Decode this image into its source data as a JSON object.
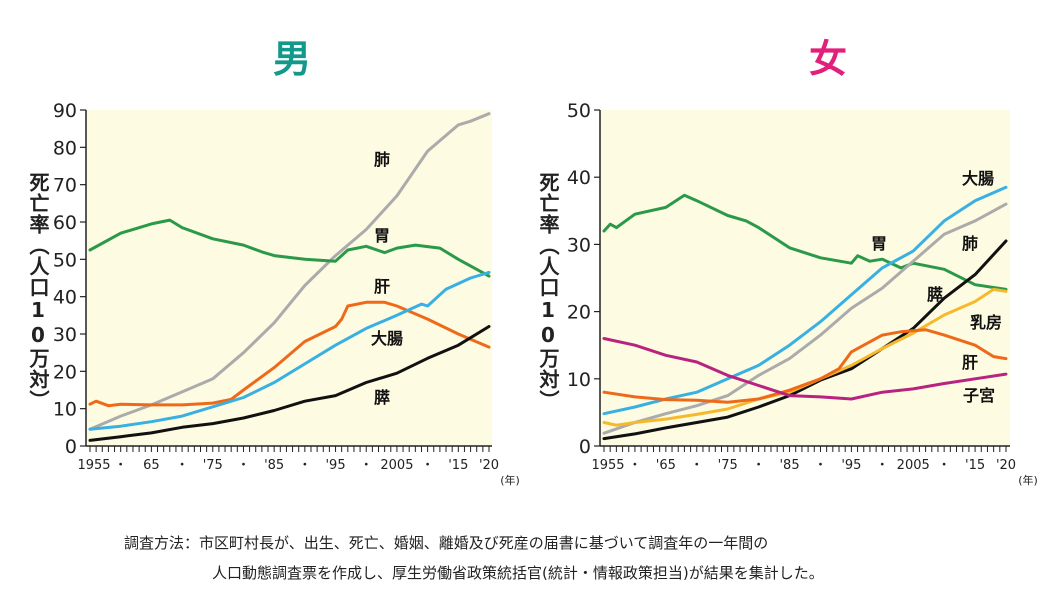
{
  "footnote": {
    "line1": "調査方法：市区町村長が、出生、死亡、婚姻、離婚及び死産の届書に基づいて調査年の一年間の",
    "line2": "人口動態調査票を作成し、厚生労働省政策統括官(統計・情報政策担当)が結果を集計した。"
  },
  "chart_data": [
    {
      "type": "line",
      "title": "男",
      "title_color": "#13998b",
      "ylabel": "死亡率（人口10万対）",
      "xunit": "(年)",
      "xlim": [
        1955,
        2020
      ],
      "ylim": [
        0,
        90
      ],
      "yticks": [
        0,
        10,
        20,
        30,
        40,
        50,
        60,
        70,
        80,
        90
      ],
      "xtick_labels": [
        "1955",
        "・",
        "65",
        "・",
        "'75",
        "・",
        "'85",
        "・",
        "'95",
        "・",
        "2005",
        "・",
        "'15",
        "'20"
      ],
      "grid": false,
      "series": [
        {
          "name": "肺",
          "color": "#ababab",
          "x": [
            1955,
            1960,
            1965,
            1970,
            1975,
            1980,
            1985,
            1990,
            1995,
            2000,
            2005,
            2010,
            2015,
            2017,
            2020
          ],
          "y": [
            4.5,
            8,
            11,
            14.5,
            18,
            25,
            33,
            43,
            51,
            58,
            67,
            79,
            86,
            87,
            89
          ]
        },
        {
          "name": "胃",
          "color": "#2a9a4a",
          "x": [
            1955,
            1960,
            1965,
            1968,
            1970,
            1975,
            1980,
            1983,
            1985,
            1990,
            1995,
            1997,
            2000,
            2003,
            2005,
            2008,
            2012,
            2015,
            2020
          ],
          "y": [
            52.5,
            57,
            59.5,
            60.5,
            58.5,
            55.5,
            53.8,
            52,
            51,
            50,
            49.5,
            52.5,
            53.5,
            51.8,
            53,
            53.8,
            53,
            50,
            45.5
          ]
        },
        {
          "name": "肝",
          "color": "#ee6a1a",
          "x": [
            1955,
            1956,
            1958,
            1960,
            1965,
            1970,
            1975,
            1978,
            1980,
            1985,
            1990,
            1995,
            1996,
            1997,
            2000,
            2003,
            2005,
            2010,
            2015,
            2020
          ],
          "y": [
            11.2,
            12,
            10.8,
            11.2,
            11,
            11,
            11.5,
            12.5,
            15,
            21,
            28,
            32,
            34,
            37.5,
            38.5,
            38.5,
            37.5,
            34,
            30,
            26.5
          ]
        },
        {
          "name": "大腸",
          "color": "#39b0e3",
          "x": [
            1955,
            1960,
            1965,
            1970,
            1975,
            1980,
            1985,
            1990,
            1995,
            2000,
            2005,
            2009,
            2010,
            2013,
            2017,
            2020
          ],
          "y": [
            4.5,
            5.3,
            6.5,
            8,
            10.5,
            13,
            17,
            22,
            27,
            31.5,
            35,
            38,
            37.5,
            42,
            45,
            46.5
          ]
        },
        {
          "name": "膵",
          "color": "#111111",
          "x": [
            1955,
            1960,
            1965,
            1970,
            1975,
            1980,
            1985,
            1990,
            1995,
            2000,
            2005,
            2010,
            2015,
            2020
          ],
          "y": [
            1.5,
            2.5,
            3.5,
            5,
            6,
            7.5,
            9.5,
            12,
            13.5,
            17,
            19.5,
            23.5,
            27,
            32
          ]
        }
      ]
    },
    {
      "type": "line",
      "title": "女",
      "title_color": "#e2207b",
      "ylabel": "死亡率（人口10万対）",
      "xunit": "(年)",
      "xlim": [
        1955,
        2020
      ],
      "ylim": [
        0,
        50
      ],
      "yticks": [
        0,
        10,
        20,
        30,
        40,
        50
      ],
      "xtick_labels": [
        "1955",
        "・",
        "'65",
        "・",
        "'75",
        "・",
        "'85",
        "・",
        "'95",
        "・",
        "2005",
        "・",
        "'15",
        "'20"
      ],
      "grid": false,
      "series": [
        {
          "name": "胃",
          "color": "#2a9a4a",
          "x": [
            1955,
            1956,
            1957,
            1960,
            1965,
            1968,
            1970,
            1975,
            1978,
            1980,
            1985,
            1990,
            1995,
            1996,
            1998,
            2000,
            2003,
            2005,
            2010,
            2015,
            2020
          ],
          "y": [
            32,
            33,
            32.5,
            34.5,
            35.5,
            37.3,
            36.5,
            34.3,
            33.5,
            32.5,
            29.5,
            28,
            27.2,
            28.3,
            27.5,
            27.8,
            26.5,
            27.2,
            26.3,
            24,
            23.3
          ]
        },
        {
          "name": "大腸",
          "color": "#39b0e3",
          "x": [
            1955,
            1960,
            1965,
            1970,
            1975,
            1980,
            1985,
            1990,
            1995,
            2000,
            2005,
            2010,
            2015,
            2020
          ],
          "y": [
            4.8,
            5.8,
            7,
            8,
            10,
            12,
            15,
            18.5,
            22.5,
            26.5,
            29,
            33.5,
            36.5,
            38.5
          ]
        },
        {
          "name": "肺",
          "color": "#ababab",
          "x": [
            1955,
            1960,
            1965,
            1970,
            1975,
            1980,
            1985,
            1990,
            1995,
            2000,
            2005,
            2010,
            2015,
            2020
          ],
          "y": [
            1.9,
            3.5,
            4.8,
            6,
            7.5,
            10.5,
            13,
            16.5,
            20.5,
            23.5,
            27.5,
            31.5,
            33.5,
            36
          ]
        },
        {
          "name": "膵",
          "color": "#111111",
          "x": [
            1955,
            1960,
            1965,
            1970,
            1975,
            1980,
            1985,
            1990,
            1995,
            2000,
            2005,
            2010,
            2015,
            2020
          ],
          "y": [
            1.1,
            1.8,
            2.7,
            3.5,
            4.3,
            5.8,
            7.5,
            9.8,
            11.5,
            14.5,
            17.5,
            22,
            25.5,
            30.5
          ]
        },
        {
          "name": "乳房",
          "color": "#f6b92b",
          "x": [
            1955,
            1957,
            1960,
            1965,
            1970,
            1975,
            1980,
            1985,
            1990,
            1995,
            2000,
            2005,
            2010,
            2015,
            2018,
            2020
          ],
          "y": [
            3.5,
            3.1,
            3.5,
            4,
            4.7,
            5.5,
            7,
            8,
            10,
            12,
            14.5,
            16.8,
            19.5,
            21.5,
            23.3,
            23
          ]
        },
        {
          "name": "肝",
          "color": "#ee6a1a",
          "x": [
            1955,
            1960,
            1965,
            1970,
            1975,
            1980,
            1985,
            1990,
            1993,
            1995,
            2000,
            2003,
            2007,
            2010,
            2015,
            2018,
            2020
          ],
          "y": [
            8,
            7.3,
            6.9,
            6.8,
            6.5,
            7,
            8.3,
            10,
            11.5,
            14,
            16.5,
            17,
            17.3,
            16.5,
            15,
            13.3,
            13
          ]
        },
        {
          "name": "子宮",
          "color": "#b8237f",
          "x": [
            1955,
            1960,
            1965,
            1970,
            1975,
            1980,
            1985,
            1990,
            1995,
            2000,
            2005,
            2010,
            2015,
            2020
          ],
          "y": [
            16,
            15,
            13.5,
            12.5,
            10.5,
            9,
            7.5,
            7.3,
            7,
            8,
            8.5,
            9.3,
            10,
            10.7
          ]
        }
      ]
    }
  ]
}
